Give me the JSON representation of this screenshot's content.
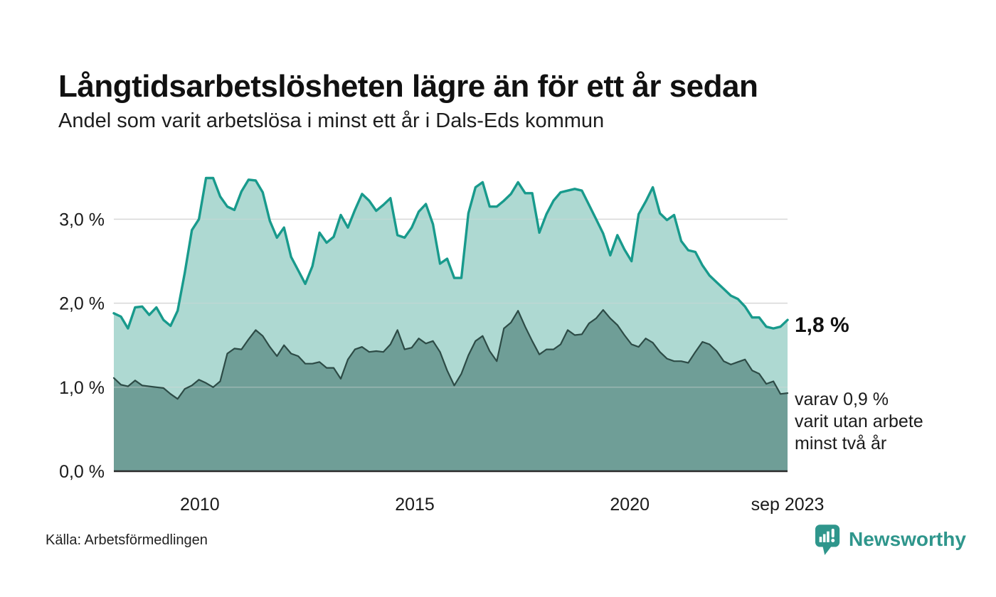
{
  "chart_data": {
    "type": "area",
    "title": "Långtidsarbetslösheten lägre än för ett år sedan",
    "subtitle": "Andel som varit arbetslösa i minst ett år i Dals-Eds kommun",
    "grid": true,
    "grid_color": "#d8d8d8",
    "axis_color": "#2b2b2b",
    "x_axis": {
      "start": 2008.0,
      "end": 2023.67,
      "ticks": [
        {
          "x": 2010,
          "label": "2010"
        },
        {
          "x": 2015,
          "label": "2015"
        },
        {
          "x": 2020,
          "label": "2020"
        },
        {
          "x": 2023.67,
          "label": "sep 2023"
        }
      ]
    },
    "y_axis": {
      "unit": "%",
      "min": 0,
      "max": 3.7,
      "ticks": [
        {
          "v": 0,
          "label": "0,0 %"
        },
        {
          "v": 1,
          "label": "1,0 %"
        },
        {
          "v": 2,
          "label": "2,0 %"
        },
        {
          "v": 3,
          "label": "3,0 %"
        }
      ]
    },
    "series": [
      {
        "name": "Arbetslösa minst ett år",
        "line_color": "#189a8c",
        "fill_color": "#aed9d2",
        "line_width": 3.4,
        "values": [
          1.88,
          1.84,
          1.7,
          1.95,
          1.96,
          1.86,
          1.95,
          1.8,
          1.73,
          1.91,
          2.36,
          2.87,
          3.0,
          3.49,
          3.49,
          3.27,
          3.15,
          3.11,
          3.33,
          3.47,
          3.46,
          3.32,
          2.98,
          2.78,
          2.9,
          2.55,
          2.39,
          2.23,
          2.44,
          2.84,
          2.72,
          2.79,
          3.05,
          2.9,
          3.11,
          3.3,
          3.22,
          3.1,
          3.17,
          3.25,
          2.81,
          2.78,
          2.9,
          3.09,
          3.18,
          2.94,
          2.47,
          2.53,
          2.3,
          2.3,
          3.07,
          3.38,
          3.44,
          3.15,
          3.15,
          3.22,
          3.3,
          3.44,
          3.31,
          3.31,
          2.84,
          3.06,
          3.22,
          3.32,
          3.34,
          3.36,
          3.34,
          3.17,
          3.0,
          2.83,
          2.57,
          2.81,
          2.64,
          2.5,
          3.06,
          3.21,
          3.38,
          3.07,
          2.99,
          3.05,
          2.74,
          2.63,
          2.61,
          2.45,
          2.33,
          2.25,
          2.17,
          2.09,
          2.05,
          1.96,
          1.83,
          1.83,
          1.72,
          1.7,
          1.72,
          1.8
        ]
      },
      {
        "name": "Utan arbete minst två år",
        "line_color": "#2d4b46",
        "fill_color": "#6f9e97",
        "line_width": 2.2,
        "values": [
          1.11,
          1.03,
          1.01,
          1.08,
          1.02,
          1.01,
          1.0,
          0.99,
          0.92,
          0.86,
          0.98,
          1.02,
          1.09,
          1.05,
          1.0,
          1.07,
          1.4,
          1.46,
          1.45,
          1.57,
          1.68,
          1.61,
          1.48,
          1.37,
          1.5,
          1.4,
          1.37,
          1.28,
          1.28,
          1.3,
          1.23,
          1.23,
          1.1,
          1.33,
          1.45,
          1.48,
          1.42,
          1.43,
          1.42,
          1.51,
          1.68,
          1.45,
          1.47,
          1.58,
          1.52,
          1.55,
          1.42,
          1.2,
          1.02,
          1.16,
          1.38,
          1.55,
          1.61,
          1.43,
          1.31,
          1.7,
          1.77,
          1.91,
          1.72,
          1.55,
          1.39,
          1.45,
          1.45,
          1.51,
          1.68,
          1.62,
          1.63,
          1.76,
          1.82,
          1.92,
          1.82,
          1.74,
          1.62,
          1.51,
          1.48,
          1.58,
          1.53,
          1.42,
          1.34,
          1.31,
          1.31,
          1.29,
          1.42,
          1.54,
          1.51,
          1.43,
          1.31,
          1.27,
          1.3,
          1.33,
          1.2,
          1.16,
          1.04,
          1.07,
          0.92,
          0.93
        ]
      }
    ],
    "annotations": {
      "latest": "1,8 %",
      "secondary": "varav 0,9 %\nvarit utan arbete\nminst två år"
    }
  },
  "footer": {
    "source": "Källa: Arbetsförmedlingen",
    "brand": "Newsworthy",
    "brand_color": "#2f968c"
  }
}
